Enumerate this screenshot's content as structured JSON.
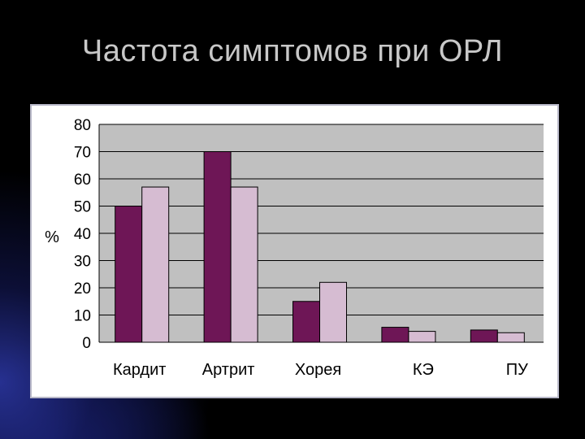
{
  "title": "Частота симптомов при ОРЛ",
  "colors": {
    "series_1": "#6e1656",
    "series_2": "#d6bcd2",
    "plot_bg": "#c0c0c0",
    "gridline": "#000000"
  },
  "chart_data": {
    "type": "bar",
    "ylabel": "%",
    "xlabel": "",
    "ylim": [
      0,
      80
    ],
    "yticks": [
      "0",
      "10",
      "20",
      "30",
      "40",
      "50",
      "60",
      "70",
      "80"
    ],
    "categories": [
      "Кардит",
      "Артрит",
      "Хорея",
      "КЭ",
      "ПУ"
    ],
    "series": [
      {
        "values": [
          50,
          70,
          15,
          5.5,
          4.5
        ]
      },
      {
        "values": [
          57,
          57,
          22,
          4,
          3.5
        ]
      }
    ],
    "grid": true
  }
}
